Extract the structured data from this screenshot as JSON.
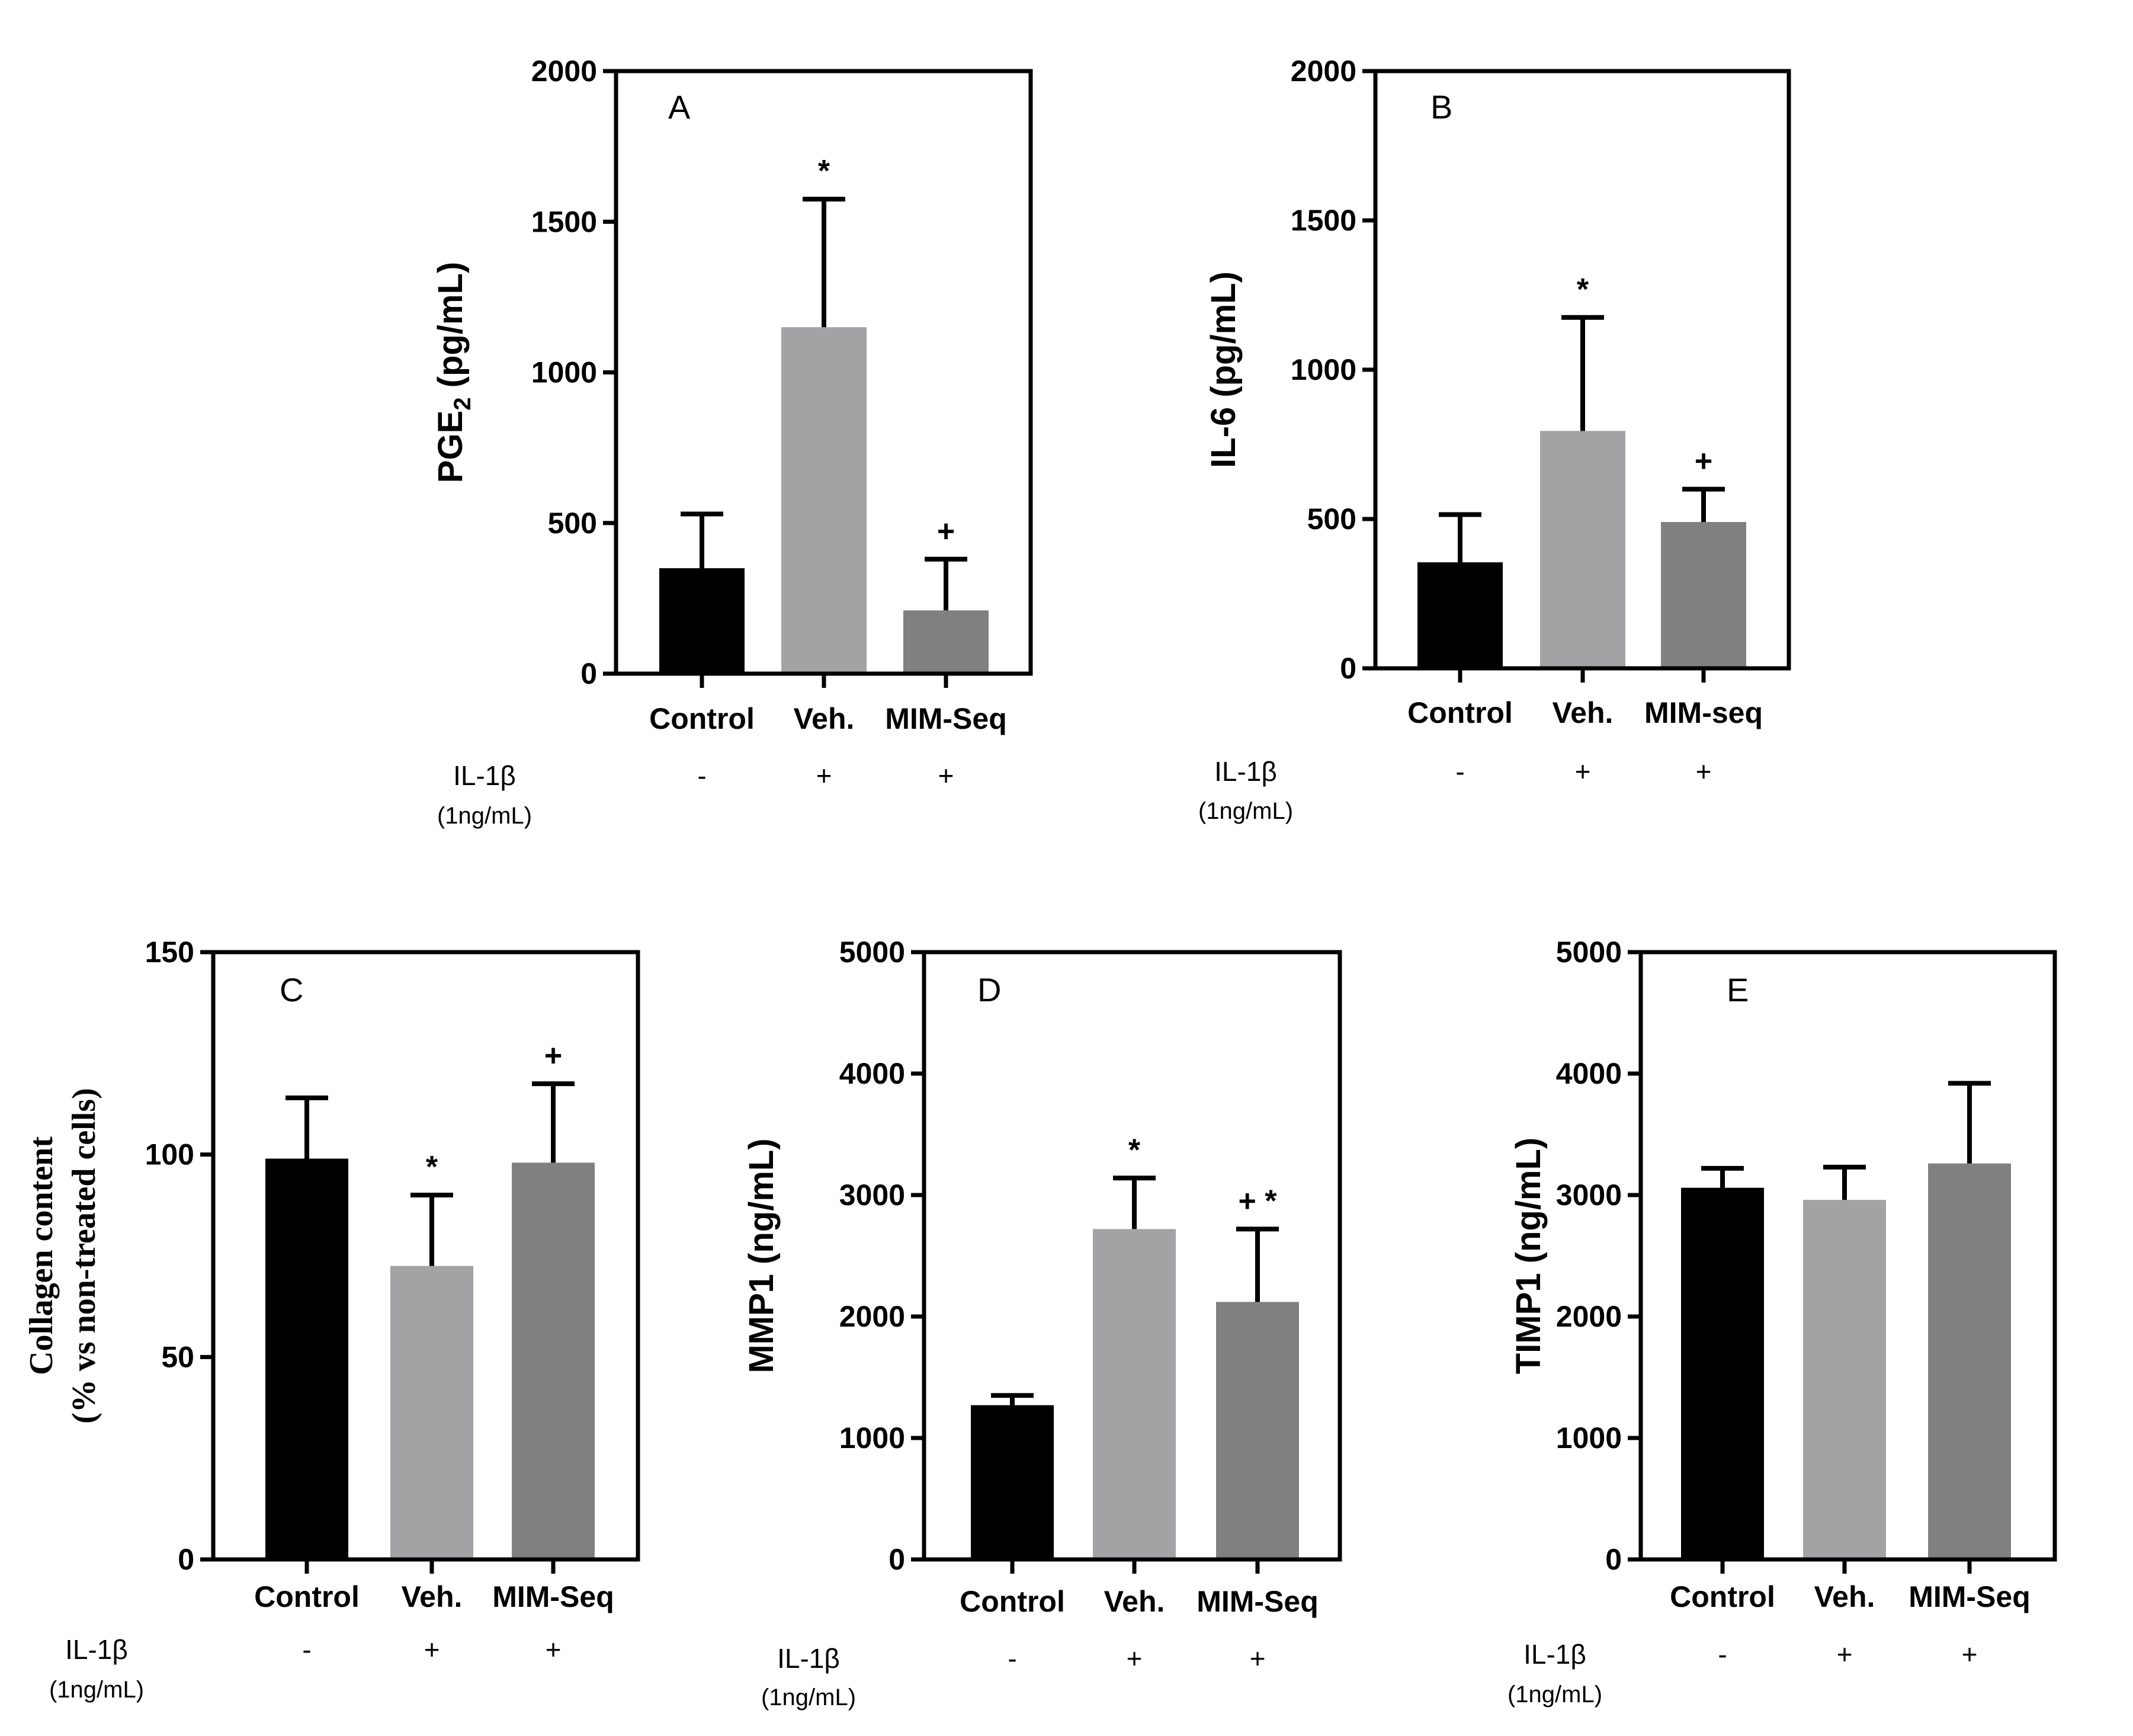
{
  "figure": {
    "colors": {
      "control": "#000000",
      "vehicle": "#a3a3a6",
      "mim": "#808080",
      "axis": "#000000"
    },
    "treatment": {
      "name": "IL-1β",
      "concentration": "(1ng/mL)"
    }
  },
  "chart_data": [
    {
      "id": "A",
      "type": "bar",
      "panel_label": "A",
      "ylabel": "PGE",
      "ylabel_sub": "2",
      "ylabel_unit": " (pg/mL)",
      "ylim": [
        0,
        2000
      ],
      "yticks": [
        0,
        500,
        1000,
        1500,
        2000
      ],
      "categories": [
        "Control",
        "Veh.",
        "MIM-Seq"
      ],
      "values": [
        350,
        1150,
        210
      ],
      "errors": [
        180,
        425,
        170
      ],
      "significance": [
        "",
        "*",
        "+"
      ],
      "treatment_signs": [
        "-",
        "+",
        "+"
      ]
    },
    {
      "id": "B",
      "type": "bar",
      "panel_label": "B",
      "ylabel": "IL-6 (pg/mL)",
      "ylim": [
        0,
        2000
      ],
      "yticks": [
        0,
        500,
        1000,
        1500,
        2000
      ],
      "categories": [
        "Control",
        "Veh.",
        "MIM-seq"
      ],
      "values": [
        355,
        795,
        490
      ],
      "errors": [
        160,
        380,
        110
      ],
      "significance": [
        "",
        "*",
        "+"
      ],
      "treatment_signs": [
        "-",
        "+",
        "+"
      ]
    },
    {
      "id": "C",
      "type": "bar",
      "panel_label": "C",
      "ylabel_lines": [
        "Collagen content",
        "(% vs non-treated cells)"
      ],
      "ylim": [
        0,
        150
      ],
      "yticks": [
        0,
        50,
        100,
        150
      ],
      "categories": [
        "Control",
        "Veh.",
        "MIM-Seq"
      ],
      "values": [
        99,
        72.5,
        98
      ],
      "errors": [
        15,
        17.5,
        19.5
      ],
      "significance": [
        "",
        "*",
        "+"
      ],
      "treatment_signs": [
        "-",
        "+",
        "+"
      ]
    },
    {
      "id": "D",
      "type": "bar",
      "panel_label": "D",
      "ylabel": "MMP1 (ng/mL)",
      "ylim": [
        0,
        5000
      ],
      "yticks": [
        0,
        1000,
        2000,
        3000,
        4000,
        5000
      ],
      "categories": [
        "Control",
        "Veh.",
        "MIM-Seq"
      ],
      "values": [
        1270,
        2720,
        2120
      ],
      "errors": [
        80,
        420,
        600
      ],
      "significance": [
        "",
        "*",
        "+ *"
      ],
      "treatment_signs": [
        "-",
        "+",
        "+"
      ]
    },
    {
      "id": "E",
      "type": "bar",
      "panel_label": "E",
      "ylabel": "TIMP1 (ng/mL)",
      "ylim": [
        0,
        5000
      ],
      "yticks": [
        0,
        1000,
        2000,
        3000,
        4000,
        5000
      ],
      "categories": [
        "Control",
        "Veh.",
        "MIM-Seq"
      ],
      "values": [
        3060,
        2960,
        3260
      ],
      "errors": [
        160,
        270,
        660
      ],
      "significance": [
        "",
        "",
        ""
      ],
      "treatment_signs": [
        "-",
        "+",
        "+"
      ]
    }
  ]
}
